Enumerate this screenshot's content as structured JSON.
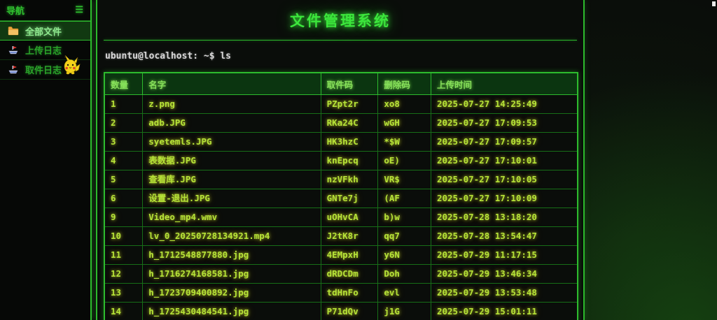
{
  "sidebar": {
    "header": {
      "label": "导航",
      "menu_icon": "☰"
    },
    "items": [
      {
        "label": "全部文件",
        "icon": "folder-icon",
        "active": true
      },
      {
        "label": "上传日志",
        "icon": "boat-icon",
        "active": false
      },
      {
        "label": "取件日志",
        "icon": "boat-icon",
        "active": false,
        "decoration": "pikachu-sprite"
      }
    ]
  },
  "main": {
    "title": "文件管理系统",
    "prompt": "ubuntu@localhost: ~$ ls",
    "table": {
      "headers": [
        "数量",
        "名字",
        "取件码",
        "删除码",
        "上传时间"
      ],
      "rows": [
        [
          "1",
          "z.png",
          "PZpt2r",
          "xo8",
          "2025-07-27 14:25:49"
        ],
        [
          "2",
          "adb.JPG",
          "RKa24C",
          "wGH",
          "2025-07-27 17:09:53"
        ],
        [
          "3",
          "syetemls.JPG",
          "HK3hzC",
          "*$W",
          "2025-07-27 17:09:57"
        ],
        [
          "4",
          "表数据.JPG",
          "knEpcq",
          "oE)",
          "2025-07-27 17:10:01"
        ],
        [
          "5",
          "查看库.JPG",
          "nzVFkh",
          "VR$",
          "2025-07-27 17:10:05"
        ],
        [
          "6",
          "设置-退出.JPG",
          "GNTe7j",
          "(AF",
          "2025-07-27 17:10:09"
        ],
        [
          "9",
          "Video_mp4.wmv",
          "uOHvCA",
          "b)w",
          "2025-07-28 13:18:20"
        ],
        [
          "10",
          "lv_0_20250728134921.mp4",
          "J2tK8r",
          "qq7",
          "2025-07-28 13:54:47"
        ],
        [
          "11",
          "h_1712548877880.jpg",
          "4EMpxH",
          "y6N",
          "2025-07-29 11:17:15"
        ],
        [
          "12",
          "h_1716274168581.jpg",
          "dRDCDm",
          "Doh",
          "2025-07-29 13:46:34"
        ],
        [
          "13",
          "h_1723709400892.jpg",
          "tdHnFo",
          "evl",
          "2025-07-29 13:53:48"
        ],
        [
          "14",
          "h_1725430484541.jpg",
          "P71dQv",
          "j1G",
          "2025-07-29 15:01:11"
        ]
      ]
    }
  },
  "colors": {
    "accent_green": "#2dbb2d",
    "title_green": "#3ce63c",
    "cell_text": "#b6e338",
    "header_cell_bg": "#0b3510",
    "sidebar_active_bg": "#113911",
    "prompt_text": "#d8d8d8",
    "background": "#0a0c0a"
  }
}
